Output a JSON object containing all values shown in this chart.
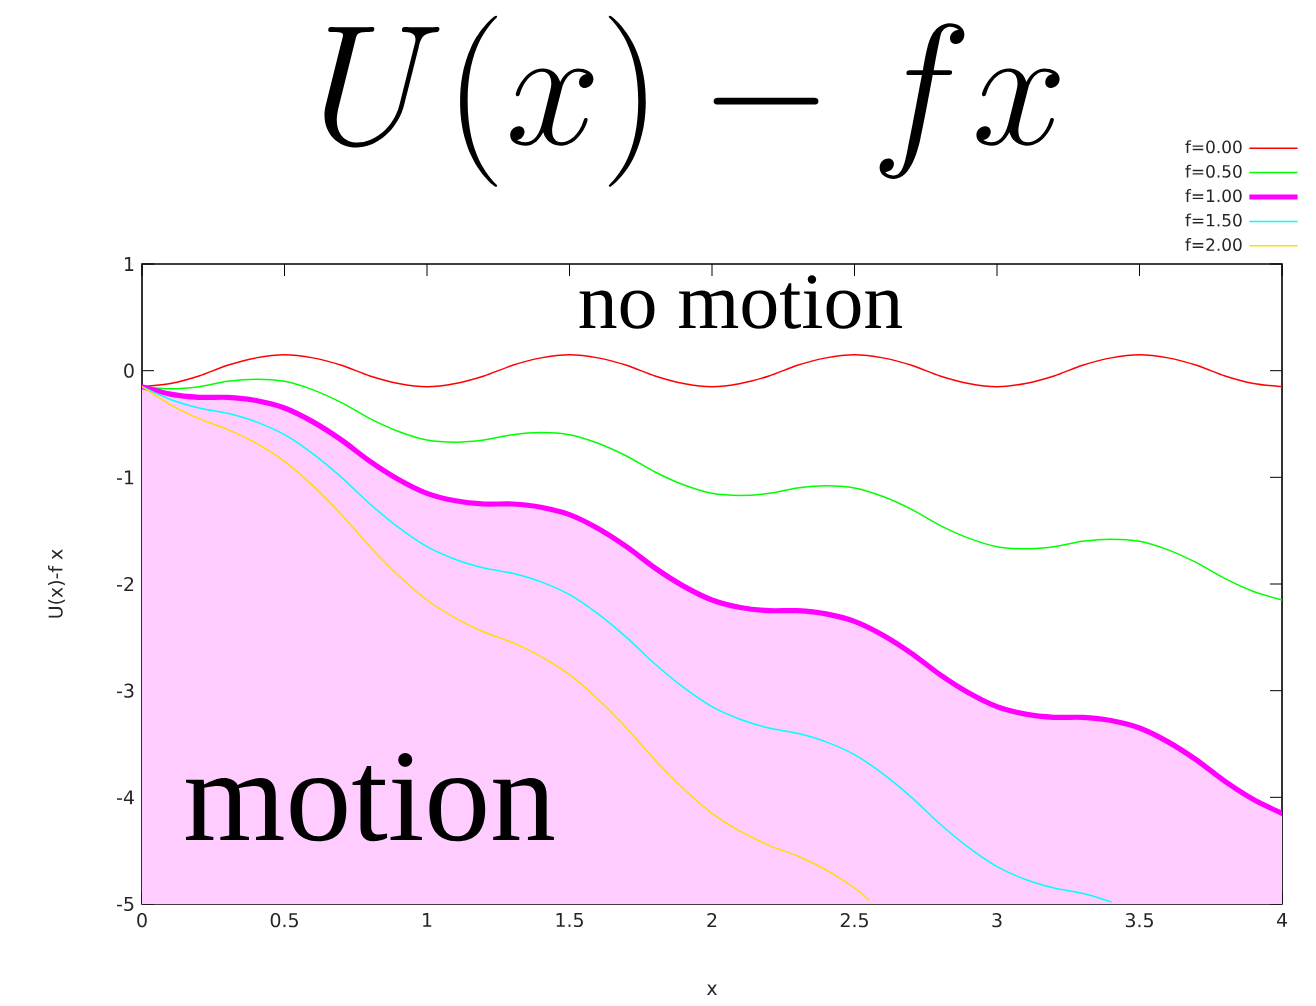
{
  "chart_data": {
    "type": "line",
    "title": "U(x) - fx",
    "xlabel": "x",
    "ylabel": "U(x)-f x",
    "annotations": [
      "no motion",
      "motion"
    ],
    "xlim": [
      0,
      4
    ],
    "ylim": [
      -5,
      1
    ],
    "xticks": [
      0,
      0.5,
      1,
      1.5,
      2,
      2.5,
      3,
      3.5,
      4
    ],
    "yticks": [
      -5,
      -4,
      -3,
      -2,
      -1,
      0,
      1
    ],
    "legend": "top right",
    "series": [
      {
        "name": "f=0.00",
        "color": "#ff0000",
        "x": [
          0,
          0.1,
          0.2,
          0.3,
          0.4,
          0.5,
          0.6,
          0.7,
          0.8,
          0.9,
          1,
          1.1,
          1.2,
          1.3,
          1.4,
          1.5,
          1.6,
          1.7,
          1.8,
          1.9,
          2,
          2.1,
          2.2,
          2.3,
          2.4,
          2.5,
          2.6,
          2.7,
          2.8,
          2.9,
          3,
          3.1,
          3.2,
          3.3,
          3.4,
          3.5,
          3.6,
          3.7,
          3.8,
          3.9,
          4
        ],
        "values": [
          -0.15,
          -0.12,
          -0.05,
          0.05,
          0.12,
          0.15,
          0.12,
          0.05,
          -0.05,
          -0.12,
          -0.15,
          -0.12,
          -0.05,
          0.05,
          0.12,
          0.15,
          0.12,
          0.05,
          -0.05,
          -0.12,
          -0.15,
          -0.12,
          -0.05,
          0.05,
          0.12,
          0.15,
          0.12,
          0.05,
          -0.05,
          -0.12,
          -0.15,
          -0.12,
          -0.05,
          0.05,
          0.12,
          0.15,
          0.12,
          0.05,
          -0.05,
          -0.12,
          -0.15
        ]
      },
      {
        "name": "f=0.50",
        "color": "#00ff00",
        "x": [
          0,
          0.1,
          0.2,
          0.3,
          0.4,
          0.5,
          0.6,
          0.7,
          0.8,
          0.9,
          1,
          1.1,
          1.2,
          1.3,
          1.4,
          1.5,
          1.6,
          1.7,
          1.8,
          1.9,
          2,
          2.1,
          2.2,
          2.3,
          2.4,
          2.5,
          2.6,
          2.7,
          2.8,
          2.9,
          3,
          3.1,
          3.2,
          3.3,
          3.4,
          3.5,
          3.6,
          3.7,
          3.8,
          3.9,
          4
        ],
        "values": [
          -0.15,
          -0.17,
          -0.15,
          -0.1,
          -0.08,
          -0.1,
          -0.18,
          -0.3,
          -0.45,
          -0.57,
          -0.65,
          -0.67,
          -0.65,
          -0.6,
          -0.58,
          -0.6,
          -0.68,
          -0.8,
          -0.95,
          -1.07,
          -1.15,
          -1.17,
          -1.15,
          -1.1,
          -1.08,
          -1.1,
          -1.18,
          -1.3,
          -1.45,
          -1.57,
          -1.65,
          -1.67,
          -1.65,
          -1.6,
          -1.58,
          -1.6,
          -1.68,
          -1.8,
          -1.95,
          -2.07,
          -2.15
        ]
      },
      {
        "name": "f=1.00",
        "color": "#ff00ff",
        "x": [
          0,
          0.1,
          0.2,
          0.3,
          0.4,
          0.5,
          0.6,
          0.7,
          0.8,
          0.9,
          1,
          1.1,
          1.2,
          1.3,
          1.4,
          1.5,
          1.6,
          1.7,
          1.8,
          1.9,
          2,
          2.1,
          2.2,
          2.3,
          2.4,
          2.5,
          2.6,
          2.7,
          2.8,
          2.9,
          3,
          3.1,
          3.2,
          3.3,
          3.4,
          3.5,
          3.6,
          3.7,
          3.8,
          3.9,
          4
        ],
        "values": [
          -0.15,
          -0.22,
          -0.25,
          -0.25,
          -0.28,
          -0.35,
          -0.48,
          -0.65,
          -0.85,
          -1.02,
          -1.15,
          -1.22,
          -1.25,
          -1.25,
          -1.28,
          -1.35,
          -1.48,
          -1.65,
          -1.85,
          -2.02,
          -2.15,
          -2.22,
          -2.25,
          -2.25,
          -2.28,
          -2.35,
          -2.48,
          -2.65,
          -2.85,
          -3.02,
          -3.15,
          -3.22,
          -3.25,
          -3.25,
          -3.28,
          -3.35,
          -3.48,
          -3.65,
          -3.85,
          -4.02,
          -4.15
        ],
        "upper": [
          -0.15,
          -0.22,
          -0.25,
          -0.25,
          -0.28,
          -0.35,
          -0.48,
          -0.65,
          -0.85,
          -1.02,
          -1.15,
          -1.22,
          -1.25,
          -1.25,
          -1.28,
          -1.35,
          -1.48,
          -1.65,
          -1.85,
          -2.02,
          -2.15,
          -2.22,
          -2.25,
          -2.25,
          -2.28,
          -2.35,
          -2.48,
          -2.65,
          -2.85,
          -3.02,
          -3.15,
          -3.22,
          -3.25,
          -3.25,
          -3.28,
          -3.35,
          -3.48,
          -3.65,
          -3.85,
          -4.02,
          -4.15
        ],
        "lower": [
          -5,
          -5,
          -5,
          -5,
          -5,
          -5,
          -5,
          -5,
          -5,
          -5,
          -5,
          -5,
          -5,
          -5,
          -5,
          -5,
          -5,
          -5,
          -5,
          -5,
          -5,
          -5,
          -5,
          -5,
          -5,
          -5,
          -5,
          -5,
          -5,
          -5,
          -5,
          -5,
          -5,
          -5,
          -5,
          -5,
          -5,
          -5,
          -5,
          -5,
          -5
        ]
      },
      {
        "name": "f=1.50",
        "color": "#00ffff",
        "x": [
          0,
          0.1,
          0.2,
          0.3,
          0.4,
          0.5,
          0.6,
          0.7,
          0.8,
          0.9,
          1,
          1.1,
          1.2,
          1.3,
          1.4,
          1.5,
          1.6,
          1.7,
          1.8,
          1.9,
          2,
          2.1,
          2.2,
          2.3,
          2.4,
          2.5,
          2.6,
          2.7,
          2.8,
          2.9,
          3,
          3.1,
          3.2,
          3.3,
          3.4
        ],
        "values": [
          -0.15,
          -0.27,
          -0.35,
          -0.4,
          -0.48,
          -0.6,
          -0.78,
          -1,
          -1.25,
          -1.47,
          -1.65,
          -1.77,
          -1.85,
          -1.9,
          -1.98,
          -2.1,
          -2.28,
          -2.5,
          -2.75,
          -2.97,
          -3.15,
          -3.27,
          -3.35,
          -3.4,
          -3.48,
          -3.6,
          -3.78,
          -4,
          -4.25,
          -4.47,
          -4.65,
          -4.77,
          -4.85,
          -4.9,
          -4.98
        ]
      },
      {
        "name": "f=2.00",
        "color": "#ffdd00",
        "x": [
          0,
          0.1,
          0.2,
          0.3,
          0.4,
          0.5,
          0.6,
          0.7,
          0.8,
          0.9,
          1,
          1.1,
          1.2,
          1.3,
          1.4,
          1.5,
          1.6,
          1.7,
          1.8,
          1.9,
          2,
          2.1,
          2.2,
          2.3,
          2.4,
          2.5,
          2.55
        ],
        "values": [
          -0.15,
          -0.32,
          -0.45,
          -0.55,
          -0.68,
          -0.85,
          -1.08,
          -1.35,
          -1.65,
          -1.92,
          -2.15,
          -2.32,
          -2.45,
          -2.55,
          -2.68,
          -2.85,
          -3.08,
          -3.35,
          -3.65,
          -3.92,
          -4.15,
          -4.32,
          -4.45,
          -4.55,
          -4.68,
          -4.85,
          -4.96
        ]
      }
    ]
  }
}
